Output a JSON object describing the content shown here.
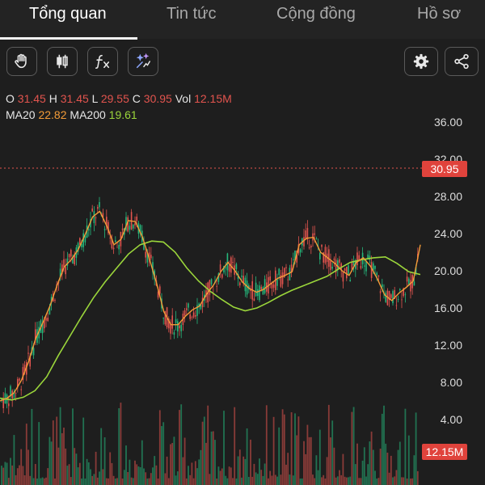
{
  "tabs": [
    {
      "label": "Tổng quan",
      "active": true
    },
    {
      "label": "Tin tức",
      "active": false
    },
    {
      "label": "Cộng đồng",
      "active": false
    },
    {
      "label": "Hồ sơ",
      "active": false
    }
  ],
  "toolbar": {
    "left_icons": [
      "hand-icon",
      "candlestick-icon",
      "function-fx-icon",
      "magic-wand-icon"
    ],
    "right_icons": [
      "gear-icon",
      "share-icon"
    ]
  },
  "ohlc": {
    "o_label": "O",
    "o_value": "31.45",
    "h_label": "H",
    "h_value": "31.45",
    "l_label": "L",
    "l_value": "29.55",
    "c_label": "C",
    "c_value": "30.95",
    "vol_label": "Vol",
    "vol_value": "12.15M",
    "ma20_label": "MA20",
    "ma20_value": "22.82",
    "ma200_label": "MA200",
    "ma200_value": "19.61"
  },
  "colors": {
    "background": "#1e1e1e",
    "up": "#25b87c",
    "down": "#e2544e",
    "ma20": "#f39c38",
    "ma200": "#9bd63b"
  },
  "chart_data": {
    "type": "line",
    "y_ticks": [
      "36.00",
      "32.00",
      "28.00",
      "24.00",
      "20.00",
      "16.00",
      "12.00",
      "8.00",
      "4.00"
    ],
    "ylim": [
      0,
      39
    ],
    "last_price": "30.95",
    "last_volume": "12.15M",
    "series": [
      {
        "name": "MA20",
        "values": [
          6.0,
          6.3,
          6.9,
          8.2,
          10.2,
          12.7,
          14.4,
          16.2,
          18.4,
          20.4,
          21.2,
          22.3,
          24.0,
          25.8,
          26.4,
          24.8,
          22.8,
          23.4,
          25.4,
          25.3,
          23.6,
          21.2,
          18.6,
          15.6,
          14.2,
          14.2,
          15.1,
          15.8,
          16.2,
          17.5,
          18.5,
          19.9,
          20.9,
          20.0,
          18.8,
          18.1,
          17.7,
          18.0,
          18.6,
          19.2,
          19.5,
          19.9,
          22.8,
          23.5,
          23.6,
          22.0,
          21.4,
          20.8,
          20.0,
          19.5,
          20.9,
          21.4,
          20.5,
          19.1,
          17.4,
          16.8,
          17.6,
          18.2,
          18.9,
          22.8
        ]
      },
      {
        "name": "MA200",
        "values": [
          6.3,
          6.1,
          6.4,
          7.1,
          8.6,
          10.9,
          13.0,
          15.1,
          17.1,
          18.8,
          20.3,
          21.8,
          22.8,
          23.2,
          23.1,
          22.0,
          20.3,
          18.9,
          17.8,
          16.9,
          16.1,
          15.7,
          16.0,
          16.6,
          17.3,
          17.9,
          18.4,
          18.9,
          19.4,
          20.2,
          20.9,
          21.2,
          21.4,
          21.5,
          20.8,
          19.9,
          19.6
        ]
      }
    ]
  }
}
